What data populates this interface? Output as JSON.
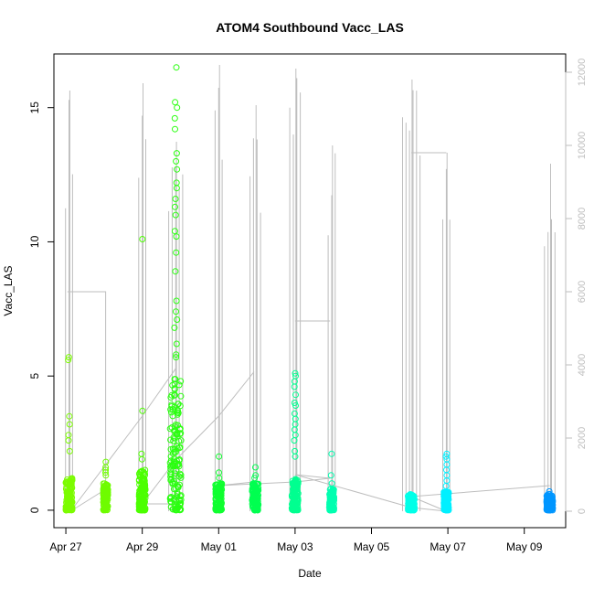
{
  "chart_data": {
    "type": "scatter",
    "title": "ATOM4 Southbound Vacc_LAS",
    "xlabel": "Date",
    "ylabel": "Vacc_LAS",
    "x_tick_labels": [
      "Apr 27",
      "Apr 29",
      "May 01",
      "May 03",
      "May 05",
      "May 07",
      "May 09"
    ],
    "x_tick_dates": [
      "2021-04-27",
      "2021-04-29",
      "2021-05-01",
      "2021-05-03",
      "2021-05-05",
      "2021-05-07",
      "2021-05-09"
    ],
    "xlim": [
      "2021-04-26T16:30",
      "2021-05-10T02:00"
    ],
    "y_ticks": [
      0,
      5,
      10,
      15
    ],
    "ylim": [
      -0.65,
      17.0
    ],
    "y2_ticks": [
      0,
      2000,
      4000,
      6000,
      8000,
      10000,
      12000
    ],
    "y2lim": [
      -450,
      12500
    ],
    "grid": false,
    "colors": {
      "secondary_line": "#bebebe",
      "secondary_axis": "#bebebe",
      "axis": "#000000",
      "point_gradient": [
        "#7cfc00",
        "#00ff40",
        "#00ffa0",
        "#00ffff",
        "#00bfff",
        "#0090ff"
      ]
    },
    "clusters": [
      {
        "center": "2021-04-27T02:00",
        "spread_h": 2,
        "color": "#7cfc00",
        "base_max": 1.2,
        "outliers": [
          5.7,
          5.6,
          3.5,
          3.2,
          2.8,
          2.6,
          2.2
        ]
      },
      {
        "center": "2021-04-28T01:00",
        "spread_h": 1.5,
        "color": "#6ffc00",
        "base_max": 1.0,
        "outliers": [
          1.8,
          1.6,
          1.5,
          1.4,
          1.3
        ]
      },
      {
        "center": "2021-04-29T00:00",
        "spread_h": 2,
        "color": "#4cff00",
        "base_max": 1.5,
        "outliers": [
          10.1,
          3.7,
          2.1,
          1.9
        ]
      },
      {
        "center": "2021-04-29T21:00",
        "spread_h": 3.5,
        "color": "#2aff10",
        "base_max": 5.0,
        "outliers": [
          16.5,
          15.2,
          15.0,
          14.6,
          14.2,
          13.3,
          13.0,
          12.7,
          12.2,
          12.0,
          11.6,
          11.3,
          11.0,
          10.4,
          10.2,
          9.6,
          8.9,
          7.8,
          7.4,
          7.1,
          6.8,
          6.2,
          5.8,
          5.7
        ]
      },
      {
        "center": "2021-05-01T00:00",
        "spread_h": 2,
        "color": "#10ff30",
        "base_max": 1.0,
        "outliers": [
          2.0,
          1.4,
          1.2
        ]
      },
      {
        "center": "2021-05-01T23:00",
        "spread_h": 2,
        "color": "#00ff50",
        "base_max": 1.0,
        "outliers": [
          1.6,
          1.3,
          1.2
        ]
      },
      {
        "center": "2021-05-03T00:00",
        "spread_h": 2,
        "color": "#00ff90",
        "base_max": 1.2,
        "outliers": [
          5.1,
          5.0,
          4.8,
          4.6,
          4.3,
          4.0,
          3.9,
          3.6,
          3.4,
          3.2,
          3.0,
          2.8,
          2.6,
          2.2,
          2.0
        ]
      },
      {
        "center": "2021-05-03T23:00",
        "spread_h": 1.5,
        "color": "#00ffb0",
        "base_max": 0.8,
        "outliers": [
          2.1,
          1.3,
          1.0
        ]
      },
      {
        "center": "2021-05-06T01:00",
        "spread_h": 2,
        "color": "#00ffe8",
        "base_max": 0.6,
        "outliers": [
          0.5
        ]
      },
      {
        "center": "2021-05-06T23:00",
        "spread_h": 1.5,
        "color": "#00f0ff",
        "base_max": 0.7,
        "outliers": [
          2.1,
          2.0,
          1.9,
          1.7,
          1.5,
          1.3,
          1.1,
          0.9
        ]
      },
      {
        "center": "2021-05-09T16:00",
        "spread_h": 2,
        "color": "#0096ff",
        "base_max": 0.6,
        "outliers": [
          0.7,
          0.6
        ]
      }
    ],
    "secondary_series": {
      "axis": "right",
      "style": "line",
      "bursts": [
        {
          "center": "2021-04-27T02:00",
          "peak": 11500,
          "spikes": 3
        },
        {
          "center": "2021-04-29T00:00",
          "peak": 11700,
          "spikes": 3
        },
        {
          "center": "2021-04-29T21:00",
          "peak": 10100,
          "spikes": 5
        },
        {
          "center": "2021-05-01T00:00",
          "peak": 12200,
          "spikes": 3
        },
        {
          "center": "2021-05-01T23:00",
          "peak": 11100,
          "spikes": 4
        },
        {
          "center": "2021-05-03T00:00",
          "peak": 12100,
          "spikes": 4
        },
        {
          "center": "2021-05-03T23:00",
          "peak": 10000,
          "spikes": 3
        },
        {
          "center": "2021-05-06T01:00",
          "peak": 11800,
          "spikes": 6
        },
        {
          "center": "2021-05-06T23:00",
          "peak": 9800,
          "spikes": 3
        },
        {
          "center": "2021-05-09T16:00",
          "peak": 9500,
          "spikes": 4
        }
      ],
      "connector_path": [
        [
          "2021-04-27T01:00",
          6000
        ],
        [
          "2021-04-28T01:00",
          6000
        ],
        [
          "2021-04-28T01:00",
          600
        ],
        [
          "2021-04-27T03:00",
          0
        ],
        [
          "2021-04-29T00:00",
          2600
        ],
        [
          "2021-04-29T21:00",
          3900
        ],
        [
          "2021-04-29T21:00",
          200
        ],
        [
          "2021-04-29T00:00",
          200
        ],
        [
          "2021-04-29T21:00",
          1400
        ],
        [
          "2021-05-01T00:00",
          2600
        ],
        [
          "2021-05-01T22:00",
          3800
        ],
        [
          "2021-05-01T22:00",
          800
        ],
        [
          "2021-05-01T00:00",
          700
        ],
        [
          "2021-05-03T00:00",
          800
        ],
        [
          "2021-05-03T22:00",
          900
        ],
        [
          "2021-05-03T00:00",
          1000
        ],
        [
          "2021-05-06T01:00",
          100
        ],
        [
          "2021-05-06T23:00",
          0
        ],
        [
          "2021-05-06T01:00",
          400
        ],
        [
          "2021-05-09T16:00",
          700
        ]
      ],
      "flat_segments": [
        [
          "2021-05-03T00:00",
          "2021-05-03T22:00",
          5200
        ],
        [
          "2021-05-06T01:00",
          "2021-05-06T23:00",
          9800
        ]
      ]
    }
  }
}
